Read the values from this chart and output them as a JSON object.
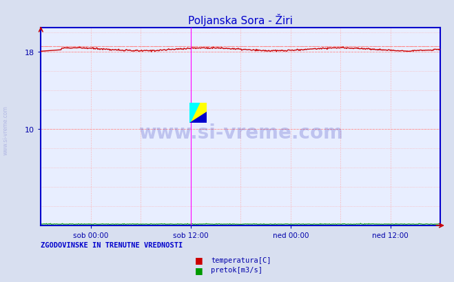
{
  "title": "Poljanska Sora - Žiri",
  "title_color": "#0000cc",
  "title_fontsize": 11,
  "bg_color": "#d8dff0",
  "plot_bg_color": "#e8eeff",
  "grid_color": "#ffaaaa",
  "grid_linestyle": ":",
  "ylim": [
    0,
    20.5
  ],
  "yticks": [
    10,
    18
  ],
  "xlabel_color": "#0000aa",
  "xtick_labels": [
    "sob 00:00",
    "sob 12:00",
    "ned 00:00",
    "ned 12:00"
  ],
  "xtick_positions": [
    0.125,
    0.375,
    0.625,
    0.875
  ],
  "temp_color": "#cc0000",
  "flow_color": "#009900",
  "avg_color": "#ff8888",
  "spine_color": "#0000cc",
  "watermark": "www.si-vreme.com",
  "watermark_color": "#0000aa",
  "watermark_alpha": 0.18,
  "legend_text1": "temperatura[C]",
  "legend_text2": "pretok[m3/s]",
  "legend_color1": "#cc0000",
  "legend_color2": "#009900",
  "footer_text": "ZGODOVINSKE IN TRENUTNE VREDNOSTI",
  "footer_color": "#0000cc",
  "n_points": 576,
  "temp_base": 18.25,
  "flow_base": 0.12,
  "magenta_vline1": 0.375,
  "magenta_color": "#ff00ff",
  "avg_line_y": 18.55
}
